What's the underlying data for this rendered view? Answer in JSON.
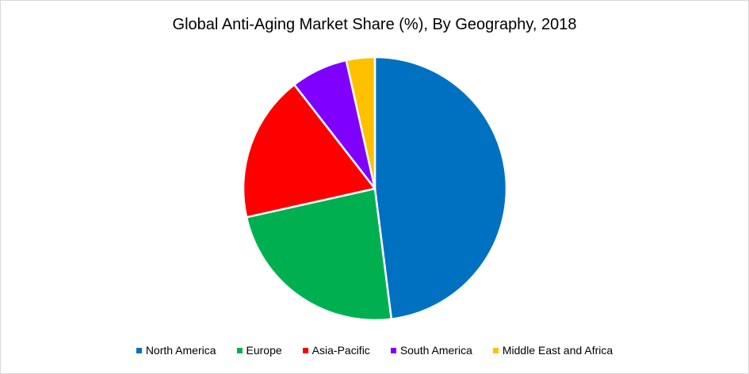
{
  "chart_data": {
    "type": "pie",
    "title": "Global Anti-Aging Market Share (%), By Geography, 2018",
    "categories": [
      "North America",
      "Europe",
      "Asia-Pacific",
      "South America",
      "Middle East and Africa"
    ],
    "values": [
      48.0,
      23.5,
      18.0,
      7.0,
      3.5
    ],
    "colors": [
      "#0070C0",
      "#00B050",
      "#FF0000",
      "#8000FF",
      "#FFC000"
    ],
    "start_angle_deg": 0,
    "direction": "clockwise",
    "legend_position": "bottom",
    "slice_border_color": "#FFFFFF"
  }
}
